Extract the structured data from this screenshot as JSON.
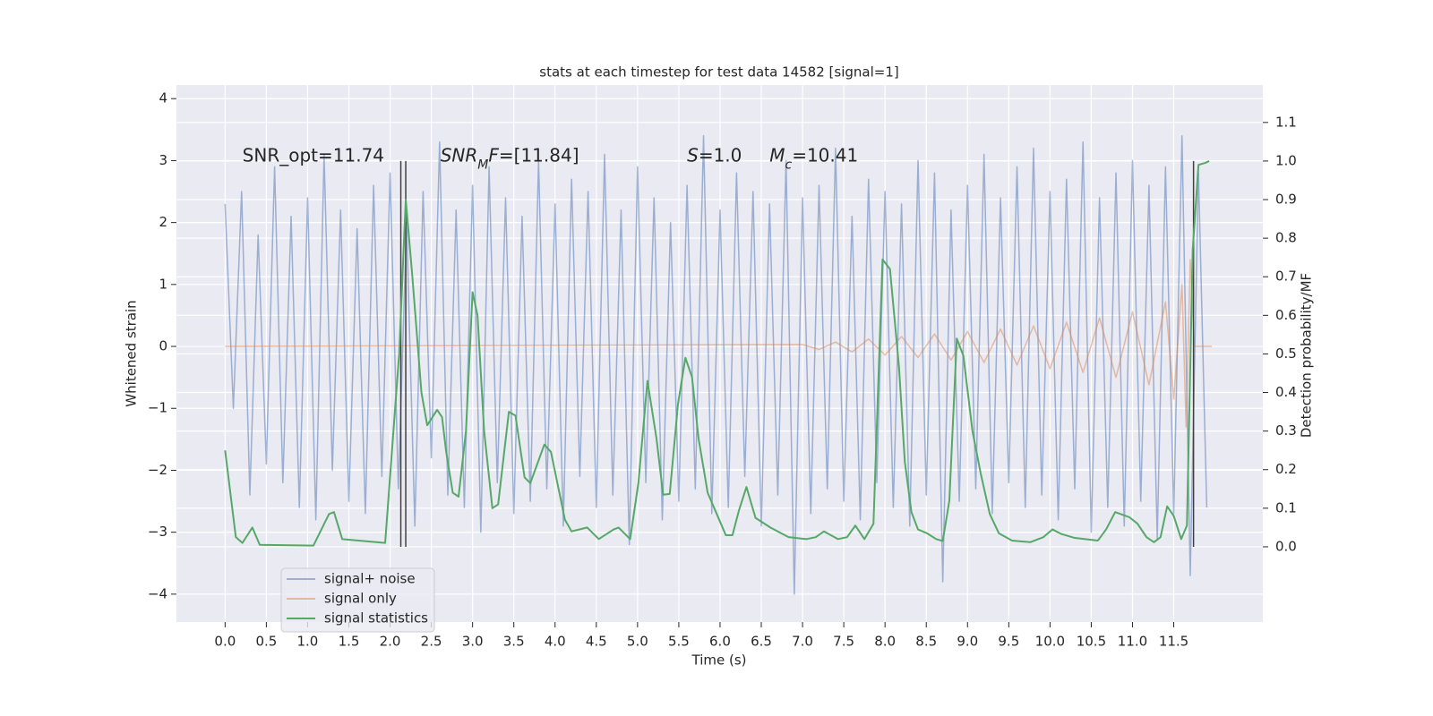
{
  "chart_data": {
    "type": "line",
    "title": "stats at each timestep for test data 14582 [signal=1]",
    "xlabel": "Time (s)",
    "ylabel": "Whitened strain",
    "y2label": "Detection probability/MF",
    "xlim": [
      -0.59,
      12.58
    ],
    "ylim": [
      -4.45,
      4.22
    ],
    "y2lim": [
      -0.195,
      1.197
    ],
    "xticks": [
      {
        "value": 0,
        "label": "0.0"
      },
      0.5,
      {
        "value": 1,
        "label": "1.0"
      },
      1.5,
      {
        "value": 2,
        "label": "2.0"
      },
      2.5,
      {
        "value": 3,
        "label": "3.0"
      },
      3.5,
      {
        "value": 4,
        "label": "4.0"
      },
      4.5,
      {
        "value": 5,
        "label": "5.0"
      },
      5.5,
      {
        "value": 6,
        "label": "6.0"
      },
      6.5,
      {
        "value": 7,
        "label": "7.0"
      },
      7.5,
      {
        "value": 8,
        "label": "8.0"
      },
      8.5,
      {
        "value": 9,
        "label": "9.0"
      },
      9.5,
      {
        "value": 10,
        "label": "10.0"
      },
      10.5,
      {
        "value": 11,
        "label": "11.0"
      },
      11.5
    ],
    "yticks": [
      {
        "value": -4,
        "label": "−4"
      },
      {
        "value": -3,
        "label": "−3"
      },
      {
        "value": -2,
        "label": "−2"
      },
      {
        "value": -1,
        "label": "−1"
      },
      0,
      1,
      2,
      3,
      4
    ],
    "y2ticks": [
      {
        "value": 0,
        "label": "0.0"
      },
      0.1,
      0.2,
      0.3,
      0.4,
      0.5,
      0.6,
      0.7,
      0.8,
      0.9,
      {
        "value": 1,
        "label": "1.0"
      },
      1.1
    ],
    "grid": true,
    "legend": "lower left",
    "series": [
      {
        "name": "signal+ noise",
        "color": "#4c72b0",
        "opacity": 0.5,
        "x": [
          0.0,
          0.1,
          0.2,
          0.3,
          0.4,
          0.5,
          0.6,
          0.7,
          0.8,
          0.9,
          1.0,
          1.1,
          1.2,
          1.3,
          1.4,
          1.5,
          1.6,
          1.7,
          1.8,
          1.9,
          2.0,
          2.1,
          2.2,
          2.3,
          2.4,
          2.5,
          2.6,
          2.7,
          2.8,
          2.9,
          3.0,
          3.1,
          3.2,
          3.3,
          3.4,
          3.5,
          3.6,
          3.7,
          3.8,
          3.9,
          4.0,
          4.1,
          4.2,
          4.3,
          4.4,
          4.5,
          4.6,
          4.7,
          4.8,
          4.9,
          5.0,
          5.1,
          5.2,
          5.3,
          5.4,
          5.5,
          5.6,
          5.7,
          5.8,
          5.9,
          6.0,
          6.1,
          6.2,
          6.3,
          6.4,
          6.5,
          6.6,
          6.7,
          6.8,
          6.9,
          7.0,
          7.1,
          7.2,
          7.3,
          7.4,
          7.5,
          7.6,
          7.7,
          7.8,
          7.9,
          8.0,
          8.1,
          8.2,
          8.3,
          8.4,
          8.5,
          8.6,
          8.7,
          8.8,
          8.9,
          9.0,
          9.1,
          9.2,
          9.3,
          9.4,
          9.5,
          9.6,
          9.7,
          9.8,
          9.9,
          10.0,
          10.1,
          10.2,
          10.3,
          10.4,
          10.5,
          10.6,
          10.7,
          10.8,
          10.9,
          11.0,
          11.1,
          11.2,
          11.3,
          11.4,
          11.5,
          11.6,
          11.7,
          11.8,
          11.9
        ],
        "values": [
          2.3,
          -1.0,
          2.5,
          -2.4,
          1.8,
          -1.9,
          2.9,
          -2.2,
          2.1,
          -2.6,
          2.4,
          -2.8,
          3.1,
          -2.0,
          2.2,
          -2.5,
          1.9,
          -2.7,
          2.6,
          -2.1,
          2.8,
          -2.3,
          2.0,
          -2.9,
          2.5,
          -1.8,
          3.3,
          -2.4,
          2.2,
          -2.6,
          2.6,
          -3.0,
          2.9,
          -2.2,
          2.4,
          -2.7,
          2.1,
          -2.5,
          3.0,
          -2.3,
          2.3,
          -2.9,
          2.7,
          -2.1,
          2.5,
          -2.6,
          3.1,
          -2.4,
          2.2,
          -3.2,
          2.9,
          -2.2,
          2.4,
          -2.8,
          2.0,
          -2.5,
          2.6,
          -2.3,
          3.4,
          -2.7,
          2.2,
          -2.6,
          2.8,
          -2.1,
          2.5,
          -2.9,
          2.3,
          -2.4,
          3.0,
          -4.0,
          2.4,
          -2.7,
          2.6,
          -2.3,
          3.2,
          -2.5,
          2.1,
          -2.8,
          2.7,
          -2.2,
          2.5,
          -2.6,
          2.3,
          -2.9,
          3.0,
          -2.4,
          2.8,
          -3.8,
          2.2,
          -2.5,
          2.6,
          -2.3,
          3.1,
          -2.7,
          2.4,
          -2.2,
          2.9,
          -2.6,
          3.2,
          -2.4,
          2.5,
          -2.8,
          2.7,
          -2.3,
          3.3,
          -3.0,
          2.4,
          -2.6,
          2.8,
          -2.9,
          3.0,
          -2.5,
          2.6,
          -3.1,
          2.9,
          -2.7,
          3.4,
          -3.7,
          2.8,
          -2.6
        ]
      },
      {
        "name": "signal only",
        "color": "#dd8452",
        "opacity": 0.5,
        "x": [
          0,
          7.0,
          7.2,
          7.4,
          7.6,
          7.8,
          8.0,
          8.2,
          8.4,
          8.6,
          8.8,
          9.0,
          9.2,
          9.4,
          9.6,
          9.8,
          10.0,
          10.2,
          10.4,
          10.6,
          10.8,
          11.0,
          11.2,
          11.4,
          11.5,
          11.6,
          11.65,
          11.7,
          11.75,
          11.96
        ],
        "values": [
          0,
          0.03,
          -0.05,
          0.07,
          -0.09,
          0.12,
          -0.14,
          0.16,
          -0.18,
          0.2,
          -0.22,
          0.24,
          -0.26,
          0.28,
          -0.3,
          0.33,
          -0.36,
          0.39,
          -0.42,
          0.46,
          -0.5,
          0.56,
          -0.62,
          0.72,
          -0.85,
          1.0,
          -1.3,
          1.4,
          0,
          0
        ]
      },
      {
        "name": "signal statistics",
        "color": "#55a868",
        "opacity": 1,
        "axis": "y2",
        "x": [
          0,
          0.13,
          0.21,
          0.33,
          0.42,
          1.07,
          1.26,
          1.32,
          1.42,
          1.94,
          2.11,
          2.19,
          2.27,
          2.38,
          2.45,
          2.57,
          2.63,
          2.68,
          2.76,
          2.83,
          2.92,
          3.0,
          3.06,
          3.14,
          3.24,
          3.31,
          3.44,
          3.52,
          3.63,
          3.7,
          3.87,
          3.95,
          4.12,
          4.2,
          4.39,
          4.53,
          4.71,
          4.77,
          4.91,
          5.01,
          5.12,
          5.23,
          5.31,
          5.39,
          5.49,
          5.58,
          5.66,
          5.74,
          5.85,
          5.96,
          6.07,
          6.15,
          6.23,
          6.32,
          6.43,
          6.61,
          6.83,
          7.05,
          7.16,
          7.26,
          7.43,
          7.54,
          7.64,
          7.75,
          7.86,
          7.97,
          8.06,
          8.17,
          8.24,
          8.32,
          8.4,
          8.51,
          8.62,
          8.7,
          8.78,
          8.87,
          8.95,
          9.06,
          9.16,
          9.27,
          9.38,
          9.54,
          9.76,
          9.92,
          10.03,
          10.14,
          10.3,
          10.58,
          10.68,
          10.79,
          10.96,
          11.06,
          11.17,
          11.26,
          11.34,
          11.42,
          11.5,
          11.59,
          11.66,
          11.73,
          11.8,
          11.88,
          11.93
        ],
        "values": [
          0.25,
          0.025,
          0.01,
          0.05,
          0.005,
          0.003,
          0.085,
          0.09,
          0.02,
          0.01,
          0.5,
          0.9,
          0.7,
          0.4,
          0.315,
          0.355,
          0.336,
          0.246,
          0.14,
          0.13,
          0.3,
          0.66,
          0.6,
          0.3,
          0.1,
          0.11,
          0.35,
          0.34,
          0.18,
          0.165,
          0.265,
          0.246,
          0.07,
          0.04,
          0.05,
          0.02,
          0.045,
          0.05,
          0.02,
          0.165,
          0.43,
          0.28,
          0.135,
          0.137,
          0.37,
          0.49,
          0.44,
          0.28,
          0.14,
          0.085,
          0.03,
          0.03,
          0.095,
          0.155,
          0.075,
          0.05,
          0.025,
          0.02,
          0.025,
          0.04,
          0.02,
          0.025,
          0.055,
          0.02,
          0.06,
          0.745,
          0.72,
          0.465,
          0.22,
          0.09,
          0.045,
          0.035,
          0.02,
          0.015,
          0.12,
          0.54,
          0.495,
          0.3,
          0.19,
          0.085,
          0.035,
          0.016,
          0.012,
          0.025,
          0.045,
          0.033,
          0.023,
          0.016,
          0.045,
          0.09,
          0.077,
          0.06,
          0.025,
          0.012,
          0.025,
          0.105,
          0.08,
          0.02,
          0.055,
          0.77,
          0.99,
          0.995,
          1.0
        ]
      }
    ],
    "vlines": [
      {
        "x": 2.13,
        "ymin": 0,
        "ymax": 1,
        "color": "#404040"
      },
      {
        "x": 2.19,
        "ymin": 0,
        "ymax": 1,
        "color": "#404040"
      },
      {
        "x": 11.74,
        "ymin": 0,
        "ymax": 1,
        "color": "#404040"
      }
    ],
    "annotations": [
      {
        "x": 0.21,
        "y": 3.1,
        "parts": [
          {
            "text": "SNR_opt=11.74"
          }
        ]
      },
      {
        "x": 2.61,
        "y": 3.1,
        "parts": [
          {
            "text": "SNR",
            "italic": true
          },
          {
            "text": "M",
            "italic": true,
            "subscript": true
          },
          {
            "text": "F",
            "italic": true
          },
          {
            "text": "=[11.84]"
          }
        ]
      },
      {
        "x": 5.6,
        "y": 3.1,
        "parts": [
          {
            "text": "S",
            "italic": true
          },
          {
            "text": "=1.0"
          }
        ]
      },
      {
        "x": 6.6,
        "y": 3.1,
        "parts": [
          {
            "text": "M",
            "italic": true
          },
          {
            "text": "c",
            "italic": true,
            "subscript": true
          },
          {
            "text": "=10.41"
          }
        ]
      }
    ]
  }
}
